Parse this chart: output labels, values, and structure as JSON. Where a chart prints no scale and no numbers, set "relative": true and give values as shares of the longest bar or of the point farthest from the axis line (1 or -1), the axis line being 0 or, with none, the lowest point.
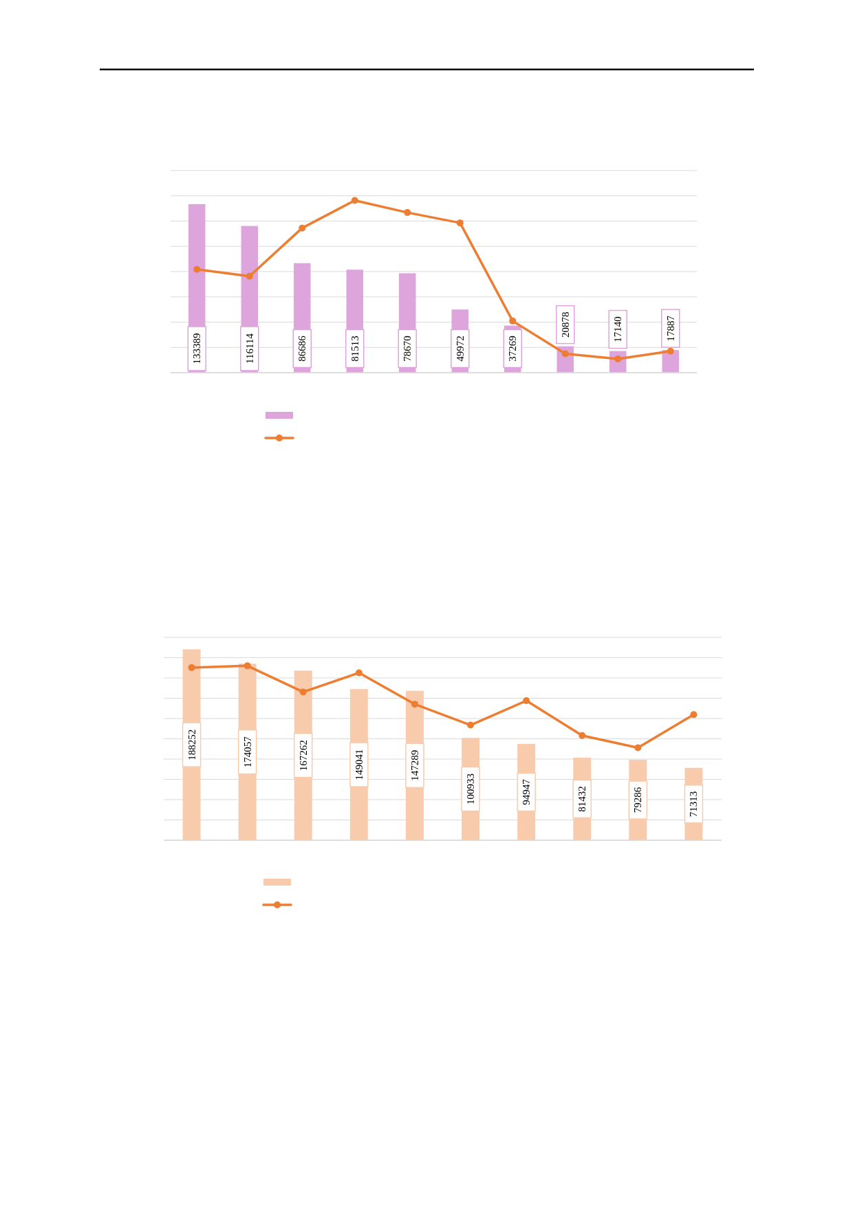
{
  "chart_data": [
    {
      "type": "bar",
      "categories": [
        null,
        null,
        null,
        null,
        null,
        null,
        null,
        null,
        null,
        null
      ],
      "ylim": [
        0,
        160000
      ],
      "yticks": [
        {
          "value": 0,
          "label": null
        },
        {
          "value": 20000,
          "label": null
        },
        {
          "value": 40000,
          "label": null
        },
        {
          "value": 60000,
          "label": null
        },
        {
          "value": 80000,
          "label": null
        },
        {
          "value": 100000,
          "label": null
        },
        {
          "value": 120000,
          "label": null
        },
        {
          "value": 140000,
          "label": null
        },
        {
          "value": 160000,
          "label": null
        }
      ],
      "grid": "y",
      "data_labels": true,
      "series": [
        {
          "color": "#dda5dc",
          "values": [
            133389,
            116114,
            86686,
            81513,
            78670,
            49972,
            37269,
            20878,
            17140,
            17887
          ]
        }
      ]
    },
    {
      "type": "line",
      "relative": true,
      "categories": [
        null,
        null,
        null,
        null,
        null,
        null,
        null,
        null,
        null,
        null
      ],
      "marker": "circle",
      "series": [
        {
          "color": "#ed7d31",
          "values": [
            0.6,
            0.56,
            0.84,
            1,
            0.93,
            0.87,
            0.3,
            0.11,
            0.08,
            0.125
          ]
        }
      ]
    },
    {
      "type": "bar",
      "categories": [
        null,
        null,
        null,
        null,
        null,
        null,
        null,
        null,
        null,
        null
      ],
      "ylim": [
        0,
        200000
      ],
      "yticks": [
        {
          "value": 0,
          "label": null
        },
        {
          "value": 20000,
          "label": null
        },
        {
          "value": 40000,
          "label": null
        },
        {
          "value": 60000,
          "label": null
        },
        {
          "value": 80000,
          "label": null
        },
        {
          "value": 100000,
          "label": null
        },
        {
          "value": 120000,
          "label": null
        },
        {
          "value": 140000,
          "label": null
        },
        {
          "value": 160000,
          "label": null
        },
        {
          "value": 180000,
          "label": null
        },
        {
          "value": 200000,
          "label": null
        }
      ],
      "grid": "y",
      "data_labels": true,
      "series": [
        {
          "color": "#f8cbad",
          "values": [
            188252,
            174057,
            167262,
            149041,
            147289,
            100933,
            94947,
            81432,
            79286,
            71313
          ]
        }
      ]
    },
    {
      "type": "line",
      "relative": true,
      "categories": [
        null,
        null,
        null,
        null,
        null,
        null,
        null,
        null,
        null,
        null
      ],
      "marker": "circle",
      "series": [
        {
          "color": "#ed7d31",
          "values": [
            0.99,
            1,
            0.85,
            0.96,
            0.78,
            0.66,
            0.8,
            0.6,
            0.53,
            0.72
          ]
        }
      ]
    }
  ]
}
